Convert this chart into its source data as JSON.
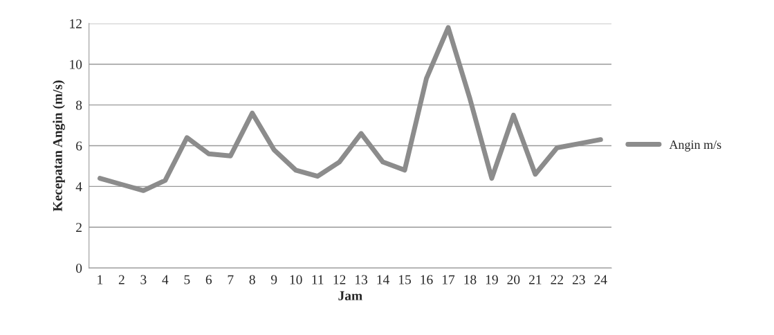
{
  "chart_data": {
    "type": "line",
    "xlabel": "Jam",
    "ylabel": "Kecepatan Angin (m/s)",
    "categories": [
      "1",
      "2",
      "3",
      "4",
      "5",
      "6",
      "7",
      "8",
      "9",
      "10",
      "11",
      "12",
      "13",
      "14",
      "15",
      "16",
      "17",
      "18",
      "19",
      "20",
      "21",
      "22",
      "23",
      "24"
    ],
    "series": [
      {
        "name": "Angin m/s",
        "color": "#8c8c8c",
        "values": [
          4.4,
          4.1,
          3.8,
          4.3,
          6.4,
          5.6,
          5.5,
          7.6,
          5.8,
          4.8,
          4.5,
          5.2,
          6.6,
          5.2,
          4.8,
          9.3,
          11.8,
          8.3,
          4.4,
          7.5,
          4.6,
          5.9,
          6.1,
          6.3
        ]
      }
    ],
    "ylim": [
      0,
      12
    ],
    "yticks": [
      0,
      2,
      4,
      6,
      8,
      10,
      12
    ],
    "grid": "y",
    "legend": "right",
    "marker": "none",
    "line_style": "solid"
  }
}
